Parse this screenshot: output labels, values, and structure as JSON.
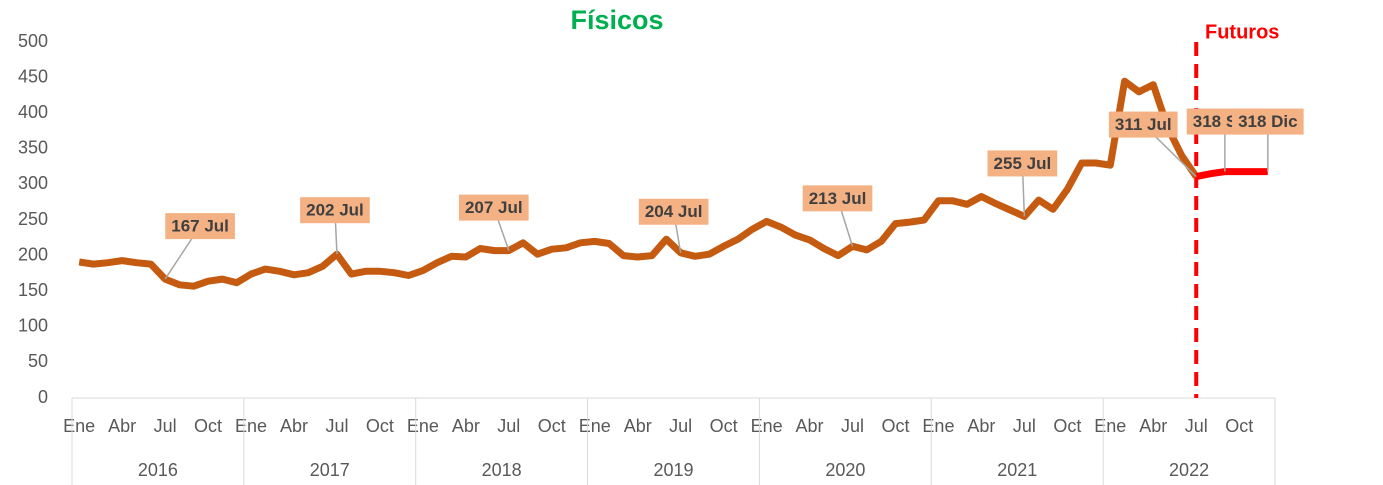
{
  "chart_data": {
    "type": "line",
    "title": "Físicos",
    "annotation": "Futuros",
    "categories": [
      "Ene",
      null,
      null,
      "Abr",
      null,
      null,
      "Jul",
      null,
      null,
      "Oct",
      null,
      null,
      "Ene",
      null,
      null,
      "Abr",
      null,
      null,
      "Jul",
      null,
      null,
      "Oct",
      null,
      null,
      "Ene",
      null,
      null,
      "Abr",
      null,
      null,
      "Jul",
      null,
      null,
      "Oct",
      null,
      null,
      "Ene",
      null,
      null,
      "Abr",
      null,
      null,
      "Jul",
      null,
      null,
      "Oct",
      null,
      null,
      "Ene",
      null,
      null,
      "Abr",
      null,
      null,
      "Jul",
      null,
      null,
      "Oct",
      null,
      null,
      "Ene",
      null,
      null,
      "Abr",
      null,
      null,
      "Jul",
      null,
      null,
      "Oct",
      null,
      null,
      "Ene",
      null,
      null,
      "Abr",
      null,
      null,
      "Jul",
      null,
      null,
      "Oct",
      null,
      null
    ],
    "year_labels": [
      "2016",
      "2017",
      "2018",
      "2019",
      "2020",
      "2021",
      "2022"
    ],
    "series": [
      {
        "name": "Físicos",
        "color": "#c55a11",
        "values": [
          191,
          188,
          190,
          193,
          190,
          188,
          167,
          159,
          157,
          164,
          167,
          162,
          174,
          181,
          178,
          173,
          176,
          185,
          202,
          174,
          178,
          178,
          176,
          172,
          179,
          190,
          199,
          198,
          210,
          207,
          207,
          218,
          202,
          209,
          211,
          218,
          220,
          217,
          200,
          198,
          200,
          223,
          204,
          199,
          202,
          213,
          223,
          237,
          248,
          240,
          229,
          222,
          210,
          200,
          213,
          208,
          220,
          245,
          247,
          250,
          277,
          277,
          272,
          283,
          273,
          264,
          255,
          278,
          265,
          293,
          330,
          330,
          327,
          445,
          430,
          440,
          380,
          340,
          311,
          null,
          null,
          null,
          null,
          null
        ],
        "value_labels": [
          null,
          null,
          null,
          null,
          null,
          null,
          "167 Jul",
          null,
          null,
          null,
          null,
          null,
          null,
          null,
          null,
          null,
          null,
          null,
          "202 Jul",
          null,
          null,
          null,
          null,
          null,
          null,
          null,
          null,
          null,
          null,
          null,
          "207 Jul",
          null,
          null,
          null,
          null,
          null,
          null,
          null,
          null,
          null,
          null,
          null,
          "204 Jul",
          null,
          null,
          null,
          null,
          null,
          null,
          null,
          null,
          null,
          null,
          null,
          "213 Jul",
          null,
          null,
          null,
          null,
          null,
          null,
          null,
          null,
          null,
          null,
          null,
          "255 Jul",
          null,
          null,
          null,
          null,
          null,
          null,
          null,
          null,
          null,
          null,
          null,
          "311 Jul",
          null,
          null,
          null,
          null,
          null
        ]
      },
      {
        "name": "Futuros",
        "color": "#ff0000",
        "values": [
          null,
          null,
          null,
          null,
          null,
          null,
          null,
          null,
          null,
          null,
          null,
          null,
          null,
          null,
          null,
          null,
          null,
          null,
          null,
          null,
          null,
          null,
          null,
          null,
          null,
          null,
          null,
          null,
          null,
          null,
          null,
          null,
          null,
          null,
          null,
          null,
          null,
          null,
          null,
          null,
          null,
          null,
          null,
          null,
          null,
          null,
          null,
          null,
          null,
          null,
          null,
          null,
          null,
          null,
          null,
          null,
          null,
          null,
          null,
          null,
          null,
          null,
          null,
          null,
          null,
          null,
          null,
          null,
          null,
          null,
          null,
          null,
          null,
          null,
          null,
          null,
          null,
          null,
          311,
          315,
          318,
          318,
          318,
          318
        ],
        "value_labels": [
          null,
          null,
          null,
          null,
          null,
          null,
          null,
          null,
          null,
          null,
          null,
          null,
          null,
          null,
          null,
          null,
          null,
          null,
          null,
          null,
          null,
          null,
          null,
          null,
          null,
          null,
          null,
          null,
          null,
          null,
          null,
          null,
          null,
          null,
          null,
          null,
          null,
          null,
          null,
          null,
          null,
          null,
          null,
          null,
          null,
          null,
          null,
          null,
          null,
          null,
          null,
          null,
          null,
          null,
          null,
          null,
          null,
          null,
          null,
          null,
          null,
          null,
          null,
          null,
          null,
          null,
          null,
          null,
          null,
          null,
          null,
          null,
          null,
          null,
          null,
          null,
          null,
          null,
          null,
          null,
          "318 Sep",
          null,
          null,
          "318 Dic"
        ]
      }
    ],
    "ylim": [
      0,
      500
    ],
    "yticks": [
      0,
      50,
      100,
      150,
      200,
      250,
      300,
      350,
      400,
      450,
      500
    ],
    "grid": false
  }
}
